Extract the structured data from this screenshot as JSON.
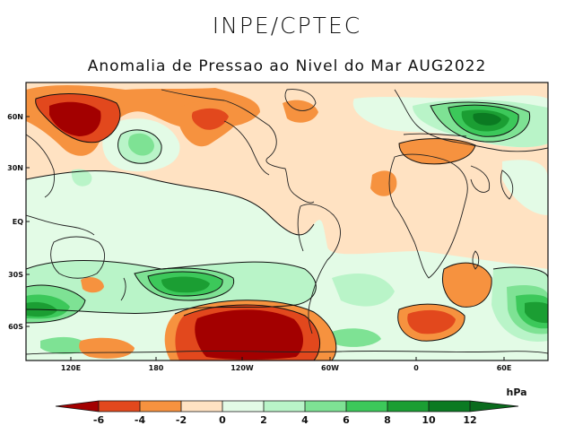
{
  "header": {
    "institution": "INPE/CPTEC",
    "subtitle": "Anomalia de Pressao ao Nivel do Mar AUG2022"
  },
  "map": {
    "lat_labels": [
      "60N",
      "30N",
      "EQ",
      "30S",
      "60S"
    ],
    "lon_labels": [
      "120E",
      "180",
      "120W",
      "60W",
      "0",
      "60E"
    ],
    "colors": {
      "neg6": "#a30000",
      "neg4": "#e2481d",
      "neg2": "#f6923f",
      "neg0": "#ffe2c2",
      "pos0": "#e3fbe6",
      "pos2": "#b9f4c8",
      "pos4": "#7ee294",
      "pos6": "#3cc85a",
      "pos8": "#1b9e33",
      "pos10": "#0b7a22",
      "contour": "#111111",
      "coast": "#222222"
    }
  },
  "colorbar": {
    "unit": "hPa",
    "labels": [
      "-6",
      "-4",
      "-2",
      "0",
      "2",
      "4",
      "6",
      "8",
      "10",
      "12"
    ],
    "colors": [
      "#a30000",
      "#e2481d",
      "#f6923f",
      "#ffe2c2",
      "#e3fbe6",
      "#b9f4c8",
      "#7ee294",
      "#3cc85a",
      "#1b9e33",
      "#0b7a22",
      "#0a6b1d"
    ]
  }
}
